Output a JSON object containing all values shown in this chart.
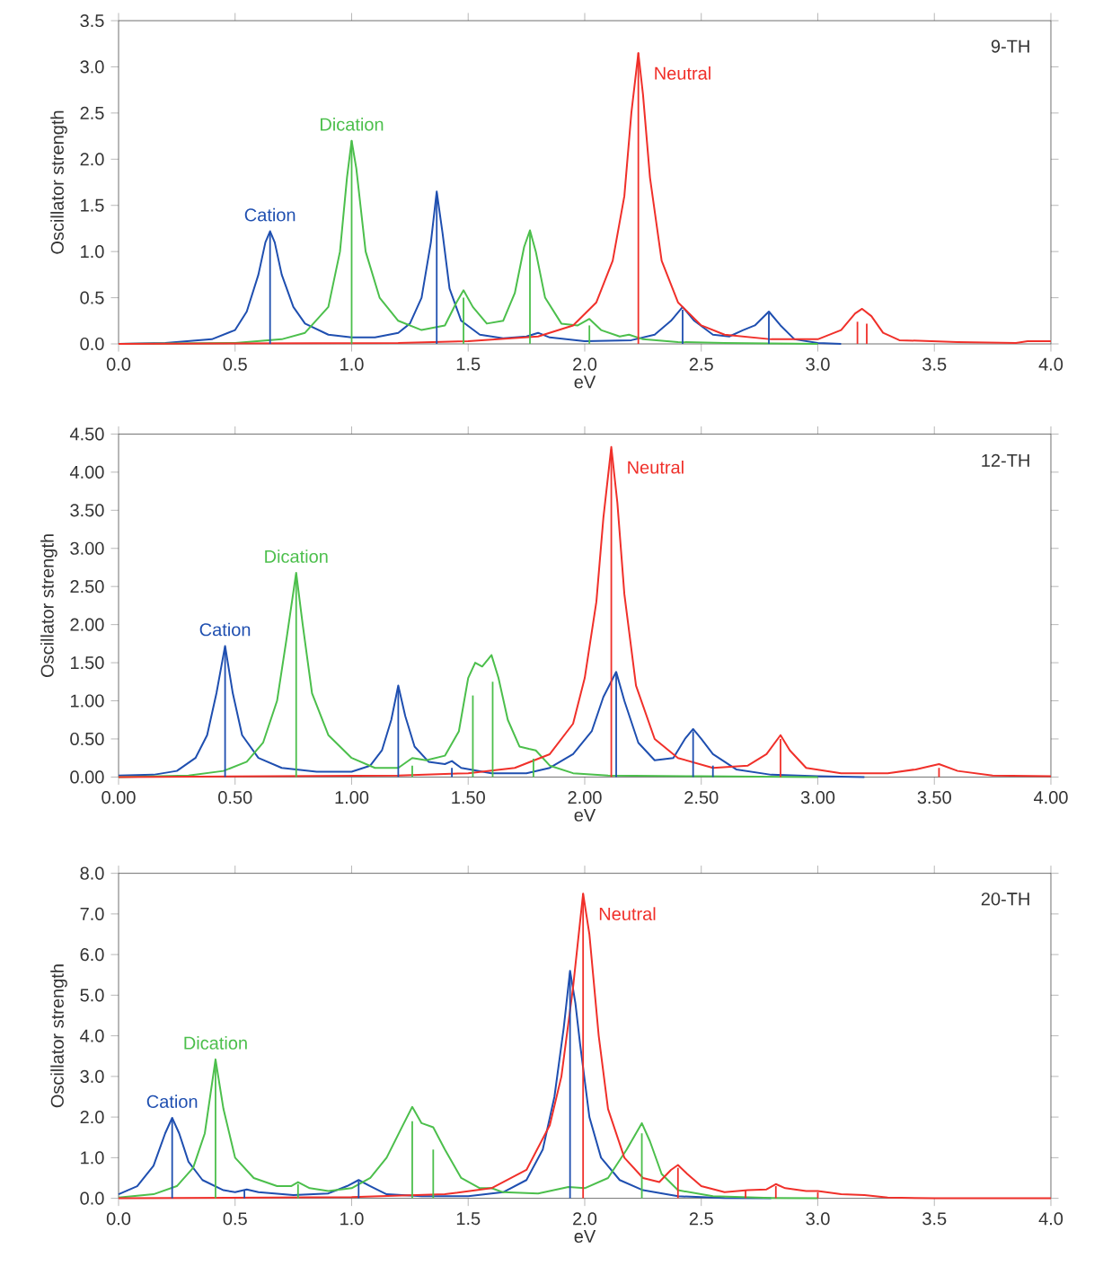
{
  "chart_data": [
    {
      "type": "line",
      "xlabel": "eV",
      "ylabel": "Oscillator strength",
      "annotations": [
        "9-TH"
      ],
      "xlim": [
        0,
        4
      ],
      "ylim": [
        0,
        3.5
      ],
      "xticks": [
        {
          "value": 0,
          "label": "0.0"
        },
        {
          "value": 0.5,
          "label": "0.5"
        },
        {
          "value": 1,
          "label": "1.0"
        },
        {
          "value": 1.5,
          "label": "1.5"
        },
        {
          "value": 2,
          "label": "2.0"
        },
        {
          "value": 2.5,
          "label": "2.5"
        },
        {
          "value": 3,
          "label": "3.0"
        },
        {
          "value": 3.5,
          "label": "3.5"
        },
        {
          "value": 4,
          "label": "4.0"
        }
      ],
      "yticks": [
        {
          "value": 0,
          "label": "0.0"
        },
        {
          "value": 0.5,
          "label": "0.5"
        },
        {
          "value": 1,
          "label": "1.0"
        },
        {
          "value": 1.5,
          "label": "1.5"
        },
        {
          "value": 2,
          "label": "2.0"
        },
        {
          "value": 2.5,
          "label": "2.5"
        },
        {
          "value": 3,
          "label": "3.0"
        },
        {
          "value": 3.5,
          "label": "3.5"
        }
      ],
      "series": [
        {
          "name": "Cation",
          "color": "#1f4fb0",
          "x": [
            0,
            0.2,
            0.4,
            0.5,
            0.55,
            0.6,
            0.63,
            0.65,
            0.67,
            0.7,
            0.75,
            0.8,
            0.9,
            1.0,
            1.1,
            1.2,
            1.25,
            1.3,
            1.34,
            1.365,
            1.39,
            1.42,
            1.47,
            1.55,
            1.65,
            1.75,
            1.8,
            1.85,
            2.0,
            2.2,
            2.3,
            2.37,
            2.42,
            2.47,
            2.55,
            2.62,
            2.68,
            2.73,
            2.79,
            2.84,
            2.9,
            3.0,
            3.1
          ],
          "values": [
            0,
            0.01,
            0.05,
            0.15,
            0.35,
            0.75,
            1.1,
            1.22,
            1.1,
            0.75,
            0.4,
            0.22,
            0.1,
            0.07,
            0.07,
            0.12,
            0.22,
            0.5,
            1.1,
            1.65,
            1.2,
            0.6,
            0.25,
            0.1,
            0.06,
            0.08,
            0.12,
            0.07,
            0.03,
            0.04,
            0.1,
            0.25,
            0.4,
            0.25,
            0.1,
            0.08,
            0.15,
            0.2,
            0.35,
            0.2,
            0.05,
            0.01,
            0
          ]
        },
        {
          "name": "Dication",
          "color": "#4cbf4c",
          "x": [
            0,
            0.5,
            0.7,
            0.8,
            0.9,
            0.95,
            0.98,
            1.0,
            1.02,
            1.06,
            1.12,
            1.2,
            1.3,
            1.4,
            1.45,
            1.48,
            1.52,
            1.58,
            1.65,
            1.7,
            1.74,
            1.765,
            1.79,
            1.83,
            1.9,
            1.97,
            2.02,
            2.07,
            2.15,
            2.19,
            2.25,
            2.4,
            2.6,
            3.0
          ],
          "values": [
            0,
            0.01,
            0.05,
            0.12,
            0.4,
            1.0,
            1.8,
            2.2,
            1.9,
            1.0,
            0.5,
            0.25,
            0.15,
            0.2,
            0.45,
            0.58,
            0.4,
            0.22,
            0.25,
            0.55,
            1.05,
            1.23,
            1.0,
            0.5,
            0.22,
            0.2,
            0.27,
            0.15,
            0.08,
            0.1,
            0.05,
            0.02,
            0.01,
            0
          ]
        },
        {
          "name": "Neutral",
          "color": "#f0302a",
          "x": [
            0,
            1.2,
            1.5,
            1.8,
            1.95,
            2.05,
            2.12,
            2.17,
            2.2,
            2.23,
            2.25,
            2.28,
            2.33,
            2.4,
            2.5,
            2.6,
            2.8,
            3.0,
            3.1,
            3.16,
            3.19,
            3.23,
            3.28,
            3.35,
            3.6,
            3.85,
            3.9,
            4.0
          ],
          "values": [
            0,
            0.01,
            0.03,
            0.08,
            0.2,
            0.45,
            0.9,
            1.6,
            2.5,
            3.15,
            2.7,
            1.8,
            0.9,
            0.45,
            0.2,
            0.1,
            0.05,
            0.05,
            0.15,
            0.33,
            0.38,
            0.3,
            0.12,
            0.04,
            0.02,
            0.01,
            0.03,
            0.03
          ]
        },
        {
          "type": "bar",
          "color": "#1f4fb0",
          "x": [
            0.65,
            1.365,
            2.42,
            2.79
          ],
          "values": [
            1.2,
            1.63,
            0.37,
            0.33
          ]
        },
        {
          "type": "bar",
          "color": "#4cbf4c",
          "x": [
            1.0,
            1.48,
            1.765,
            2.02
          ],
          "values": [
            2.2,
            0.5,
            1.2,
            0.2
          ]
        },
        {
          "type": "bar",
          "color": "#f0302a",
          "x": [
            2.23,
            3.17,
            3.21
          ],
          "values": [
            3.15,
            0.24,
            0.22
          ]
        }
      ]
    },
    {
      "type": "line",
      "xlabel": "eV",
      "ylabel": "Oscillator strength",
      "annotations": [
        "12-TH"
      ],
      "xlim": [
        0,
        4
      ],
      "ylim": [
        0,
        4.5
      ],
      "xticks": [
        {
          "value": 0,
          "label": "0.00"
        },
        {
          "value": 0.5,
          "label": "0.50"
        },
        {
          "value": 1,
          "label": "1.00"
        },
        {
          "value": 1.5,
          "label": "1.50"
        },
        {
          "value": 2,
          "label": "2.00"
        },
        {
          "value": 2.5,
          "label": "2.50"
        },
        {
          "value": 3,
          "label": "3.00"
        },
        {
          "value": 3.5,
          "label": "3.50"
        },
        {
          "value": 4,
          "label": "4.00"
        }
      ],
      "yticks": [
        {
          "value": 0,
          "label": "0.00"
        },
        {
          "value": 0.5,
          "label": "0.50"
        },
        {
          "value": 1,
          "label": "1.00"
        },
        {
          "value": 1.5,
          "label": "1.50"
        },
        {
          "value": 2,
          "label": "2.00"
        },
        {
          "value": 2.5,
          "label": "2.50"
        },
        {
          "value": 3,
          "label": "3.00"
        },
        {
          "value": 3.5,
          "label": "3.50"
        },
        {
          "value": 4,
          "label": "4.00"
        },
        {
          "value": 4.5,
          "label": "4.50"
        }
      ],
      "series": [
        {
          "name": "Cation",
          "color": "#1f4fb0",
          "x": [
            0,
            0.15,
            0.25,
            0.33,
            0.38,
            0.42,
            0.457,
            0.49,
            0.53,
            0.6,
            0.7,
            0.85,
            1.0,
            1.08,
            1.13,
            1.17,
            1.2,
            1.23,
            1.27,
            1.33,
            1.4,
            1.43,
            1.47,
            1.6,
            1.75,
            1.85,
            1.95,
            2.03,
            2.08,
            2.135,
            2.17,
            2.23,
            2.3,
            2.38,
            2.43,
            2.465,
            2.5,
            2.55,
            2.65,
            2.8,
            3.0,
            3.2
          ],
          "values": [
            0.02,
            0.03,
            0.08,
            0.25,
            0.55,
            1.1,
            1.72,
            1.1,
            0.55,
            0.25,
            0.12,
            0.07,
            0.07,
            0.15,
            0.35,
            0.75,
            1.2,
            0.8,
            0.4,
            0.2,
            0.17,
            0.21,
            0.12,
            0.05,
            0.05,
            0.12,
            0.3,
            0.6,
            1.05,
            1.38,
            1.0,
            0.45,
            0.22,
            0.25,
            0.5,
            0.63,
            0.5,
            0.3,
            0.1,
            0.03,
            0.01,
            0
          ]
        },
        {
          "name": "Dication",
          "color": "#4cbf4c",
          "x": [
            0,
            0.3,
            0.45,
            0.55,
            0.62,
            0.68,
            0.72,
            0.762,
            0.79,
            0.83,
            0.9,
            1.0,
            1.1,
            1.2,
            1.26,
            1.32,
            1.4,
            1.46,
            1.5,
            1.53,
            1.56,
            1.6,
            1.63,
            1.67,
            1.72,
            1.76,
            1.79,
            1.85,
            1.95,
            2.1,
            2.5,
            3.0
          ],
          "values": [
            0,
            0.02,
            0.08,
            0.2,
            0.45,
            1.0,
            1.8,
            2.68,
            2.0,
            1.1,
            0.55,
            0.25,
            0.12,
            0.12,
            0.25,
            0.22,
            0.28,
            0.6,
            1.3,
            1.5,
            1.45,
            1.6,
            1.3,
            0.75,
            0.4,
            0.37,
            0.35,
            0.15,
            0.05,
            0.02,
            0.01,
            0
          ]
        },
        {
          "name": "Neutral",
          "color": "#f0302a",
          "x": [
            0,
            1.2,
            1.5,
            1.7,
            1.85,
            1.95,
            2.0,
            2.05,
            2.08,
            2.114,
            2.14,
            2.17,
            2.22,
            2.3,
            2.4,
            2.55,
            2.7,
            2.78,
            2.84,
            2.88,
            2.95,
            3.1,
            3.3,
            3.42,
            3.52,
            3.6,
            3.75,
            4.0
          ],
          "values": [
            0,
            0.02,
            0.05,
            0.12,
            0.3,
            0.7,
            1.3,
            2.3,
            3.4,
            4.33,
            3.6,
            2.4,
            1.2,
            0.5,
            0.25,
            0.12,
            0.15,
            0.3,
            0.55,
            0.35,
            0.12,
            0.05,
            0.05,
            0.1,
            0.17,
            0.08,
            0.02,
            0.01
          ]
        },
        {
          "type": "bar",
          "color": "#1f4fb0",
          "x": [
            0.457,
            1.2,
            1.43,
            2.135,
            2.465,
            2.55
          ],
          "values": [
            1.7,
            1.18,
            0.12,
            1.35,
            0.6,
            0.15
          ]
        },
        {
          "type": "bar",
          "color": "#4cbf4c",
          "x": [
            0.762,
            1.26,
            1.52,
            1.605,
            1.78
          ],
          "values": [
            2.65,
            0.15,
            1.07,
            1.25,
            0.24
          ]
        },
        {
          "type": "bar",
          "color": "#f0302a",
          "x": [
            2.114,
            2.84,
            3.52
          ],
          "values": [
            4.3,
            0.5,
            0.12
          ]
        }
      ]
    },
    {
      "type": "line",
      "xlabel": "eV",
      "ylabel": "Oscillator strength",
      "annotations": [
        "20-TH"
      ],
      "xlim": [
        0,
        4
      ],
      "ylim": [
        0,
        8
      ],
      "xticks": [
        {
          "value": 0,
          "label": "0.0"
        },
        {
          "value": 0.5,
          "label": "0.5"
        },
        {
          "value": 1,
          "label": "1.0"
        },
        {
          "value": 1.5,
          "label": "1.5"
        },
        {
          "value": 2,
          "label": "2.0"
        },
        {
          "value": 2.5,
          "label": "2.5"
        },
        {
          "value": 3,
          "label": "3.0"
        },
        {
          "value": 3.5,
          "label": "3.5"
        },
        {
          "value": 4,
          "label": "4.0"
        }
      ],
      "yticks": [
        {
          "value": 0,
          "label": "0.0"
        },
        {
          "value": 1,
          "label": "1.0"
        },
        {
          "value": 2,
          "label": "2.0"
        },
        {
          "value": 3,
          "label": "3.0"
        },
        {
          "value": 4,
          "label": "4.0"
        },
        {
          "value": 5,
          "label": "5.0"
        },
        {
          "value": 6,
          "label": "6.0"
        },
        {
          "value": 7,
          "label": "7.0"
        },
        {
          "value": 8,
          "label": "8.0"
        }
      ],
      "series": [
        {
          "name": "Cation",
          "color": "#1f4fb0",
          "x": [
            0,
            0.08,
            0.15,
            0.2,
            0.23,
            0.26,
            0.3,
            0.36,
            0.45,
            0.5,
            0.55,
            0.6,
            0.75,
            0.9,
            0.98,
            1.03,
            1.08,
            1.15,
            1.3,
            1.5,
            1.65,
            1.75,
            1.82,
            1.87,
            1.91,
            1.937,
            1.96,
            1.98,
            2.02,
            2.07,
            2.15,
            2.25,
            2.4,
            2.6,
            2.8
          ],
          "values": [
            0.1,
            0.3,
            0.8,
            1.6,
            1.98,
            1.6,
            0.9,
            0.45,
            0.2,
            0.15,
            0.22,
            0.15,
            0.08,
            0.12,
            0.3,
            0.45,
            0.3,
            0.1,
            0.05,
            0.05,
            0.15,
            0.45,
            1.2,
            2.5,
            4.2,
            5.6,
            4.8,
            3.8,
            2.0,
            1.0,
            0.45,
            0.2,
            0.05,
            0.01,
            0
          ]
        },
        {
          "name": "Dication",
          "color": "#4cbf4c",
          "x": [
            0,
            0.15,
            0.25,
            0.32,
            0.37,
            0.416,
            0.45,
            0.5,
            0.58,
            0.68,
            0.74,
            0.77,
            0.82,
            0.9,
            1.0,
            1.08,
            1.15,
            1.22,
            1.26,
            1.3,
            1.35,
            1.4,
            1.47,
            1.55,
            1.6,
            1.65,
            1.8,
            1.93,
            2.0,
            2.1,
            2.18,
            2.245,
            2.28,
            2.33,
            2.4,
            2.55,
            2.8,
            3.0
          ],
          "values": [
            0.02,
            0.1,
            0.3,
            0.75,
            1.6,
            3.42,
            2.2,
            1.0,
            0.5,
            0.3,
            0.3,
            0.4,
            0.25,
            0.18,
            0.25,
            0.5,
            1.0,
            1.8,
            2.25,
            1.85,
            1.75,
            1.2,
            0.5,
            0.25,
            0.25,
            0.15,
            0.12,
            0.28,
            0.25,
            0.5,
            1.2,
            1.85,
            1.4,
            0.6,
            0.2,
            0.05,
            0.01,
            0
          ]
        },
        {
          "name": "Neutral",
          "color": "#f0302a",
          "x": [
            0,
            1.0,
            1.4,
            1.6,
            1.75,
            1.85,
            1.9,
            1.95,
            1.993,
            2.02,
            2.06,
            2.1,
            2.17,
            2.25,
            2.32,
            2.37,
            2.4,
            2.44,
            2.5,
            2.6,
            2.7,
            2.78,
            2.82,
            2.86,
            2.95,
            3.0,
            3.1,
            3.2,
            3.3,
            3.5,
            4.0
          ],
          "values": [
            0,
            0.03,
            0.1,
            0.25,
            0.7,
            1.8,
            3.0,
            5.2,
            7.5,
            6.5,
            4.0,
            2.2,
            1.0,
            0.5,
            0.4,
            0.7,
            0.82,
            0.6,
            0.3,
            0.15,
            0.2,
            0.22,
            0.35,
            0.25,
            0.18,
            0.18,
            0.1,
            0.08,
            0.02,
            0,
            0
          ]
        },
        {
          "type": "bar",
          "color": "#1f4fb0",
          "x": [
            0.23,
            0.54,
            1.03,
            1.937
          ],
          "values": [
            1.95,
            0.2,
            0.42,
            5.55
          ]
        },
        {
          "type": "bar",
          "color": "#4cbf4c",
          "x": [
            0.416,
            0.77,
            1.26,
            1.35,
            2.245
          ],
          "values": [
            3.35,
            0.35,
            1.9,
            1.2,
            1.6
          ]
        },
        {
          "type": "bar",
          "color": "#f0302a",
          "x": [
            1.993,
            2.4,
            2.69,
            2.82,
            3.0
          ],
          "values": [
            7.5,
            0.75,
            0.2,
            0.3,
            0.15
          ]
        }
      ]
    }
  ]
}
